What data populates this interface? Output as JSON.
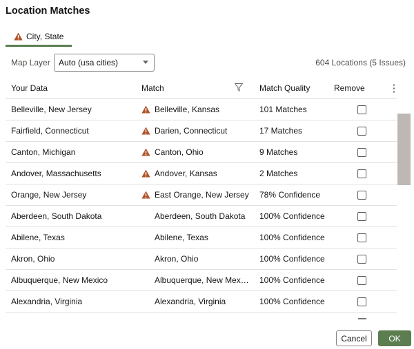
{
  "dialog": {
    "title": "Location Matches"
  },
  "tab": {
    "label": "City, State",
    "icon": "warning-icon"
  },
  "map_layer": {
    "label": "Map Layer",
    "value": "Auto (usa cities)"
  },
  "summary": "604 Locations (5 Issues)",
  "columns": {
    "your_data": "Your Data",
    "match": "Match",
    "quality": "Match Quality",
    "remove": "Remove"
  },
  "rows": [
    {
      "your_data": "Belleville, New Jersey",
      "match": "Belleville, Kansas",
      "warning": true,
      "quality": "101 Matches",
      "remove": false
    },
    {
      "your_data": "Fairfield, Connecticut",
      "match": "Darien, Connecticut",
      "warning": true,
      "quality": "17 Matches",
      "remove": false
    },
    {
      "your_data": "Canton, Michigan",
      "match": "Canton, Ohio",
      "warning": true,
      "quality": "9 Matches",
      "remove": false
    },
    {
      "your_data": "Andover, Massachusetts",
      "match": "Andover, Kansas",
      "warning": true,
      "quality": "2 Matches",
      "remove": false
    },
    {
      "your_data": "Orange, New Jersey",
      "match": "East Orange, New Jersey",
      "warning": true,
      "quality": "78% Confidence",
      "remove": false
    },
    {
      "your_data": "Aberdeen, South Dakota",
      "match": "Aberdeen, South Dakota",
      "warning": false,
      "quality": "100% Confidence",
      "remove": false
    },
    {
      "your_data": "Abilene, Texas",
      "match": "Abilene, Texas",
      "warning": false,
      "quality": "100% Confidence",
      "remove": false
    },
    {
      "your_data": "Akron, Ohio",
      "match": "Akron, Ohio",
      "warning": false,
      "quality": "100% Confidence",
      "remove": false
    },
    {
      "your_data": "Albuquerque, New Mexico",
      "match": "Albuquerque, New Mexico",
      "warning": false,
      "quality": "100% Confidence",
      "remove": false
    },
    {
      "your_data": "Alexandria, Virginia",
      "match": "Alexandria, Virginia",
      "warning": false,
      "quality": "100% Confidence",
      "remove": false
    }
  ],
  "buttons": {
    "cancel": "Cancel",
    "ok": "OK"
  },
  "colors": {
    "accent": "#5b7d4f",
    "warning": "#b0532a"
  }
}
